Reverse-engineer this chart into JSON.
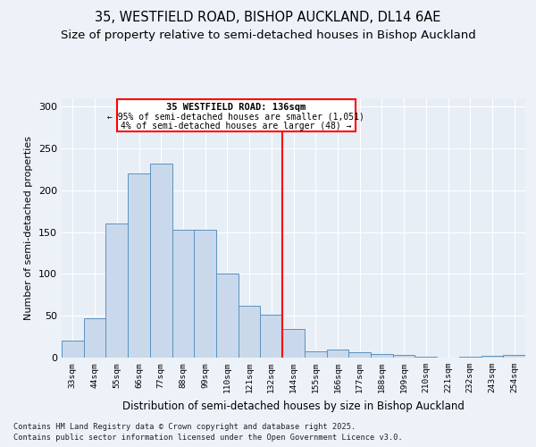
{
  "title1": "35, WESTFIELD ROAD, BISHOP AUCKLAND, DL14 6AE",
  "title2": "Size of property relative to semi-detached houses in Bishop Auckland",
  "xlabel": "Distribution of semi-detached houses by size in Bishop Auckland",
  "ylabel": "Number of semi-detached properties",
  "footnote1": "Contains HM Land Registry data © Crown copyright and database right 2025.",
  "footnote2": "Contains public sector information licensed under the Open Government Licence v3.0.",
  "categories": [
    "33sqm",
    "44sqm",
    "55sqm",
    "66sqm",
    "77sqm",
    "88sqm",
    "99sqm",
    "110sqm",
    "121sqm",
    "132sqm",
    "144sqm",
    "155sqm",
    "166sqm",
    "177sqm",
    "188sqm",
    "199sqm",
    "210sqm",
    "221sqm",
    "232sqm",
    "243sqm",
    "254sqm"
  ],
  "bar_values": [
    20,
    47,
    160,
    220,
    232,
    153,
    153,
    101,
    62,
    51,
    34,
    7,
    10,
    6,
    4,
    3,
    1,
    0,
    1,
    2,
    3
  ],
  "bar_color": "#c9d9eb",
  "bar_edge_color": "#5b92c0",
  "vline_color": "red",
  "annotation_title": "35 WESTFIELD ROAD: 136sqm",
  "annotation_line1": "← 95% of semi-detached houses are smaller (1,051)",
  "annotation_line2": "4% of semi-detached houses are larger (48) →",
  "ylim": [
    0,
    310
  ],
  "yticks": [
    0,
    50,
    100,
    150,
    200,
    250,
    300
  ],
  "bg_color": "#edf2f9",
  "plot_bg_color": "#e8eef6",
  "grid_color": "#ffffff",
  "title1_fontsize": 10.5,
  "title2_fontsize": 9.5,
  "xlabel_fontsize": 8.5,
  "ylabel_fontsize": 8
}
